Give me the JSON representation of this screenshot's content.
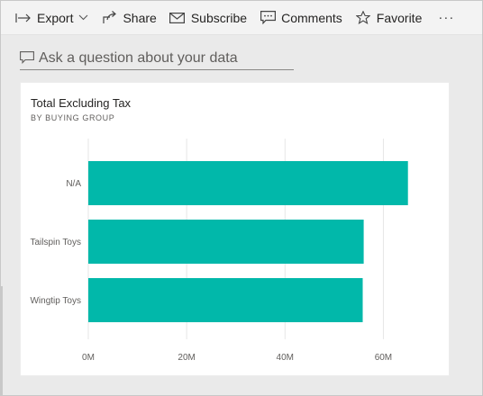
{
  "toolbar": {
    "export_label": "Export",
    "share_label": "Share",
    "subscribe_label": "Subscribe",
    "comments_label": "Comments",
    "favorite_label": "Favorite",
    "more_label": "···"
  },
  "qa": {
    "placeholder": "Ask a question about your data"
  },
  "card": {
    "title": "Total Excluding Tax",
    "subtitle": "BY BUYING GROUP"
  },
  "colors": {
    "bar": "#01b8aa",
    "gridline": "#e6e6e6",
    "axis_text": "#605e5c"
  },
  "chart_data": {
    "type": "bar",
    "orientation": "horizontal",
    "title": "Total Excluding Tax",
    "subtitle": "BY BUYING GROUP",
    "categories": [
      "N/A",
      "Tailspin Toys",
      "Wingtip Toys"
    ],
    "values": [
      65000000,
      56000000,
      55800000
    ],
    "xlim": [
      0,
      70000000
    ],
    "xticks": [
      0,
      20000000,
      40000000,
      60000000
    ],
    "xtick_labels": [
      "0M",
      "20M",
      "40M",
      "60M"
    ],
    "grid": true,
    "legend": "none"
  }
}
